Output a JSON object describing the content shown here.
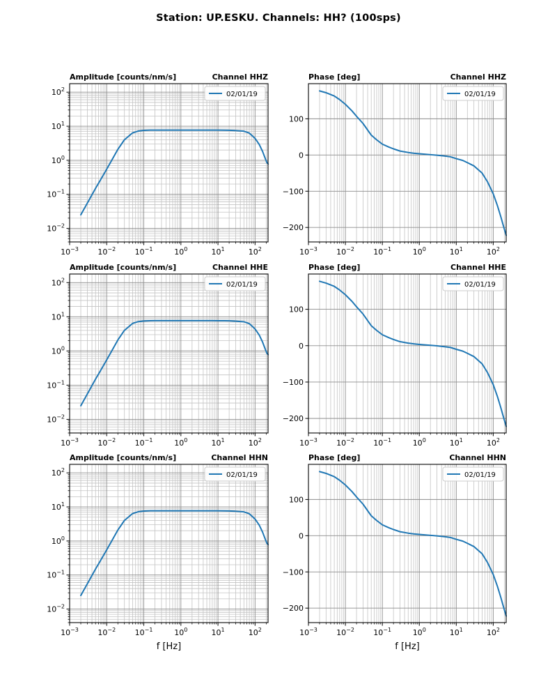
{
  "header": {
    "title": "Station: UP.ESKU. Channels: HH? (100sps)"
  },
  "colors": {
    "line": "#1f77b4",
    "grid_major": "#8c8c8c",
    "grid_minor": "#c3c3c3",
    "spine": "#000000",
    "text": "#000000",
    "legend_border": "#cccccc",
    "legend_background": "#ffffff",
    "background": "#ffffff"
  },
  "chart_data": {
    "type": "line",
    "suptitle": "Station: UP.ESKU. Channels: HH? (100sps)",
    "station": "UP.ESKU",
    "channels": "HH?",
    "sampling_rate": "100sps",
    "xlabel": "f [Hz]",
    "x_scale": "log",
    "xlim": [
      0.001,
      224
    ],
    "x_tick_labels": [
      "10⁻³",
      "10⁻²",
      "10⁻¹",
      "10⁰",
      "10¹",
      "10²"
    ],
    "x_tick_exponents": [
      -3,
      -2,
      -1,
      0,
      1,
      2
    ],
    "grid": "on, major and minor, both axes (phase: horizontal major only)",
    "legend_label": "02/01/19",
    "legend_position": "upper right",
    "frequencies_hz": [
      0.002,
      0.003,
      0.005,
      0.007,
      0.01,
      0.015,
      0.02,
      0.03,
      0.05,
      0.07,
      0.1,
      0.15,
      0.2,
      0.3,
      0.5,
      0.7,
      1,
      2,
      3,
      5,
      7,
      10,
      15,
      20,
      30,
      50,
      70,
      100,
      130,
      160,
      190,
      210,
      224
    ],
    "charts": [
      {
        "id": "amplitude-hhz",
        "row": 0,
        "quantity": "amplitude",
        "title_left": "Amplitude [counts/nm/s]",
        "title_right": "Channel HHZ",
        "y_scale": "log",
        "ylim": [
          0.004,
          178
        ],
        "y_tick_labels": [
          "10²",
          "10¹",
          "10⁰",
          "10⁻¹",
          "10⁻²"
        ],
        "y_tick_exponents": [
          2,
          1,
          0,
          -1,
          -2
        ],
        "legend": "02/01/19",
        "values": [
          0.025,
          0.055,
          0.15,
          0.28,
          0.55,
          1.2,
          2.1,
          4.0,
          6.4,
          7.2,
          7.55,
          7.68,
          7.7,
          7.7,
          7.7,
          7.7,
          7.7,
          7.7,
          7.7,
          7.7,
          7.7,
          7.68,
          7.66,
          7.6,
          7.45,
          7.15,
          6.3,
          4.4,
          2.9,
          1.8,
          1.1,
          0.85,
          0.78
        ]
      },
      {
        "id": "phase-hhz",
        "row": 0,
        "quantity": "phase",
        "title_left": "Phase [deg]",
        "title_right": "Channel HHZ",
        "y_scale": "linear",
        "ylim": [
          -240,
          197
        ],
        "y_ticks": [
          100,
          0,
          -100,
          -200
        ],
        "legend": "02/01/19",
        "values": [
          177,
          172,
          163,
          153,
          140,
          122,
          107,
          87,
          55,
          42,
          30,
          22,
          17,
          11,
          7,
          5,
          3.5,
          1,
          -0.5,
          -3,
          -5,
          -10,
          -15,
          -21,
          -30,
          -50,
          -74,
          -107,
          -140,
          -170,
          -197,
          -212,
          -222
        ]
      },
      {
        "id": "amplitude-hhe",
        "row": 1,
        "quantity": "amplitude",
        "title_left": "Amplitude [counts/nm/s]",
        "title_right": "Channel HHE",
        "y_scale": "log",
        "ylim": [
          0.004,
          178
        ],
        "y_tick_labels": [
          "10²",
          "10¹",
          "10⁰",
          "10⁻¹",
          "10⁻²"
        ],
        "y_tick_exponents": [
          2,
          1,
          0,
          -1,
          -2
        ],
        "legend": "02/01/19",
        "values": [
          0.025,
          0.055,
          0.15,
          0.28,
          0.55,
          1.2,
          2.1,
          4.0,
          6.4,
          7.2,
          7.55,
          7.68,
          7.7,
          7.7,
          7.7,
          7.7,
          7.7,
          7.7,
          7.7,
          7.7,
          7.7,
          7.68,
          7.66,
          7.6,
          7.45,
          7.15,
          6.3,
          4.4,
          2.9,
          1.8,
          1.1,
          0.85,
          0.78
        ]
      },
      {
        "id": "phase-hhe",
        "row": 1,
        "quantity": "phase",
        "title_left": "Phase [deg]",
        "title_right": "Channel HHE",
        "y_scale": "linear",
        "ylim": [
          -240,
          197
        ],
        "y_ticks": [
          100,
          0,
          -100,
          -200
        ],
        "legend": "02/01/19",
        "values": [
          177,
          172,
          163,
          153,
          140,
          122,
          107,
          87,
          55,
          42,
          30,
          22,
          17,
          11,
          7,
          5,
          3.5,
          1,
          -0.5,
          -3,
          -5,
          -10,
          -15,
          -21,
          -30,
          -50,
          -74,
          -107,
          -140,
          -170,
          -197,
          -212,
          -222
        ]
      },
      {
        "id": "amplitude-hhn",
        "row": 2,
        "quantity": "amplitude",
        "title_left": "Amplitude [counts/nm/s]",
        "title_right": "Channel HHN",
        "y_scale": "log",
        "ylim": [
          0.004,
          178
        ],
        "y_tick_labels": [
          "10²",
          "10¹",
          "10⁰",
          "10⁻¹",
          "10⁻²"
        ],
        "y_tick_exponents": [
          2,
          1,
          0,
          -1,
          -2
        ],
        "legend": "02/01/19",
        "values": [
          0.025,
          0.055,
          0.15,
          0.28,
          0.55,
          1.2,
          2.1,
          4.0,
          6.4,
          7.2,
          7.55,
          7.68,
          7.7,
          7.7,
          7.7,
          7.7,
          7.7,
          7.7,
          7.7,
          7.7,
          7.7,
          7.68,
          7.66,
          7.6,
          7.45,
          7.15,
          6.3,
          4.4,
          2.9,
          1.8,
          1.1,
          0.85,
          0.78
        ]
      },
      {
        "id": "phase-hhn",
        "row": 2,
        "quantity": "phase",
        "title_left": "Phase [deg]",
        "title_right": "Channel HHN",
        "y_scale": "linear",
        "ylim": [
          -240,
          197
        ],
        "y_ticks": [
          100,
          0,
          -100,
          -200
        ],
        "legend": "02/01/19",
        "values": [
          177,
          172,
          163,
          153,
          140,
          122,
          107,
          87,
          55,
          42,
          30,
          22,
          17,
          11,
          7,
          5,
          3.5,
          1,
          -0.5,
          -3,
          -5,
          -10,
          -15,
          -21,
          -30,
          -50,
          -74,
          -107,
          -140,
          -170,
          -197,
          -212,
          -222
        ]
      }
    ]
  }
}
